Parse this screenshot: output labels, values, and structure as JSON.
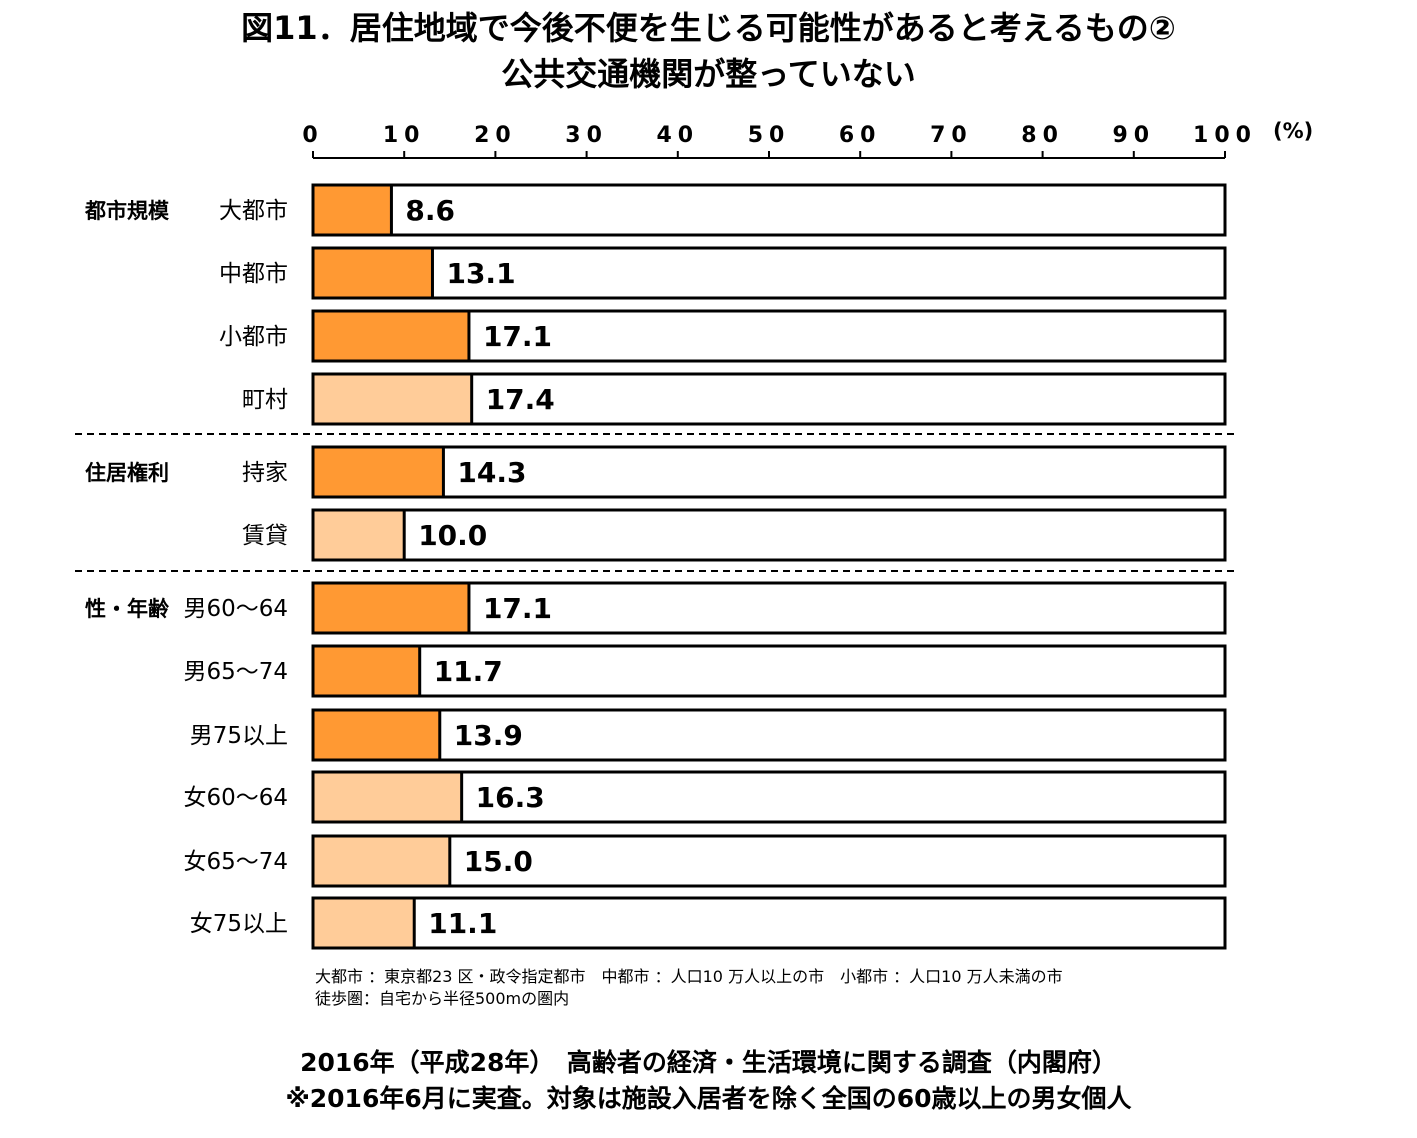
{
  "title": {
    "line1": "図11．居住地域で今後不便を生じる可能性があると考えるもの②",
    "line2": "公共交通機関が整っていない"
  },
  "chart_data": {
    "type": "bar",
    "orientation": "horizontal",
    "unit": "(%)",
    "xlim": [
      0,
      100
    ],
    "x_ticks": [
      "0",
      "10",
      "20",
      "30",
      "40",
      "50",
      "60",
      "70",
      "80",
      "90",
      "100"
    ],
    "groups": [
      {
        "name": "都市規模",
        "rows": [
          {
            "label": "大都市",
            "value": 8.6,
            "value_label": "8.6",
            "shade": "dark"
          },
          {
            "label": "中都市",
            "value": 13.1,
            "value_label": "13.1",
            "shade": "dark"
          },
          {
            "label": "小都市",
            "value": 17.1,
            "value_label": "17.1",
            "shade": "dark"
          },
          {
            "label": "町村",
            "value": 17.4,
            "value_label": "17.4",
            "shade": "light"
          }
        ]
      },
      {
        "name": "住居権利",
        "rows": [
          {
            "label": "持家",
            "value": 14.3,
            "value_label": "14.3",
            "shade": "dark"
          },
          {
            "label": "賃貸",
            "value": 10.0,
            "value_label": "10.0",
            "shade": "light"
          }
        ]
      },
      {
        "name": "性・年齢",
        "rows": [
          {
            "label": "男60～64",
            "value": 17.1,
            "value_label": "17.1",
            "shade": "dark"
          },
          {
            "label": "男65～74",
            "value": 11.7,
            "value_label": "11.7",
            "shade": "dark"
          },
          {
            "label": "男75以上",
            "value": 13.9,
            "value_label": "13.9",
            "shade": "dark"
          },
          {
            "label": "女60～64",
            "value": 16.3,
            "value_label": "16.3",
            "shade": "light"
          },
          {
            "label": "女65～74",
            "value": 15.0,
            "value_label": "15.0",
            "shade": "light"
          },
          {
            "label": "女75以上",
            "value": 11.1,
            "value_label": "11.1",
            "shade": "light"
          }
        ]
      }
    ],
    "colors": {
      "dark": "#FF9933",
      "light": "#FFCC99",
      "frame": "#000000"
    },
    "legend": "none",
    "grid": false
  },
  "notes": {
    "line1": "大都市 ：東京都23 区・政令指定都市　中都市 ：人口10 万人以上の市　小都市 ：人口10 万人未満の市",
    "line2": "徒歩圏：自宅から半径500mの圏内"
  },
  "source": {
    "line1": "2016年（平成28年）　高齢者の経済・生活環境に関する調査（内閣府）",
    "line2": "※2016年6月に実査。対象は施設入居者を除く全国の60歳以上の男女個人"
  }
}
